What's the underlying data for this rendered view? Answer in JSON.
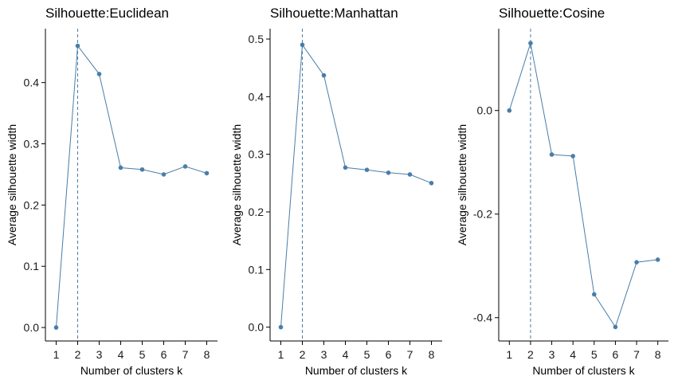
{
  "chart_data": [
    {
      "type": "line",
      "title": "Silhouette:Euclidean",
      "xlabel": "Number of clusters k",
      "ylabel": "Average silhouette width",
      "x": [
        1,
        2,
        3,
        4,
        5,
        6,
        7,
        8
      ],
      "values": [
        0.0,
        0.46,
        0.414,
        0.261,
        0.258,
        0.25,
        0.263,
        0.252
      ],
      "optimal_k": 2,
      "ylim": [
        -0.022,
        0.488
      ],
      "yticks": [
        0.0,
        0.1,
        0.2,
        0.3,
        0.4
      ],
      "ytick_labels": [
        "0.0",
        "0.1",
        "0.2",
        "0.3",
        "0.4"
      ],
      "grid": false
    },
    {
      "type": "line",
      "title": "Silhouette:Manhattan",
      "xlabel": "Number of clusters k",
      "ylabel": "Average silhouette width",
      "x": [
        1,
        2,
        3,
        4,
        5,
        6,
        7,
        8
      ],
      "values": [
        0.0,
        0.49,
        0.437,
        0.277,
        0.273,
        0.268,
        0.265,
        0.25
      ],
      "optimal_k": 2,
      "ylim": [
        -0.024,
        0.518
      ],
      "yticks": [
        0.0,
        0.1,
        0.2,
        0.3,
        0.4,
        0.5
      ],
      "ytick_labels": [
        "0.0",
        "0.1",
        "0.2",
        "0.3",
        "0.4",
        "0.5"
      ],
      "grid": false
    },
    {
      "type": "line",
      "title": "Silhouette:Cosine",
      "xlabel": "Number of clusters k",
      "ylabel": "Average silhouette width",
      "x": [
        1,
        2,
        3,
        4,
        5,
        6,
        7,
        8
      ],
      "values": [
        0.0,
        0.13,
        -0.085,
        -0.088,
        -0.355,
        -0.418,
        -0.293,
        -0.288
      ],
      "optimal_k": 2,
      "ylim": [
        -0.445,
        0.158
      ],
      "yticks": [
        0.0,
        -0.2,
        -0.4
      ],
      "ytick_labels": [
        "0.0",
        "-0.2",
        "-0.4"
      ],
      "grid": false
    }
  ],
  "colors": {
    "line": "#4a7ea8",
    "point": "#4a7ea8",
    "vline": "#4a7ea8",
    "axis": "#000000"
  }
}
